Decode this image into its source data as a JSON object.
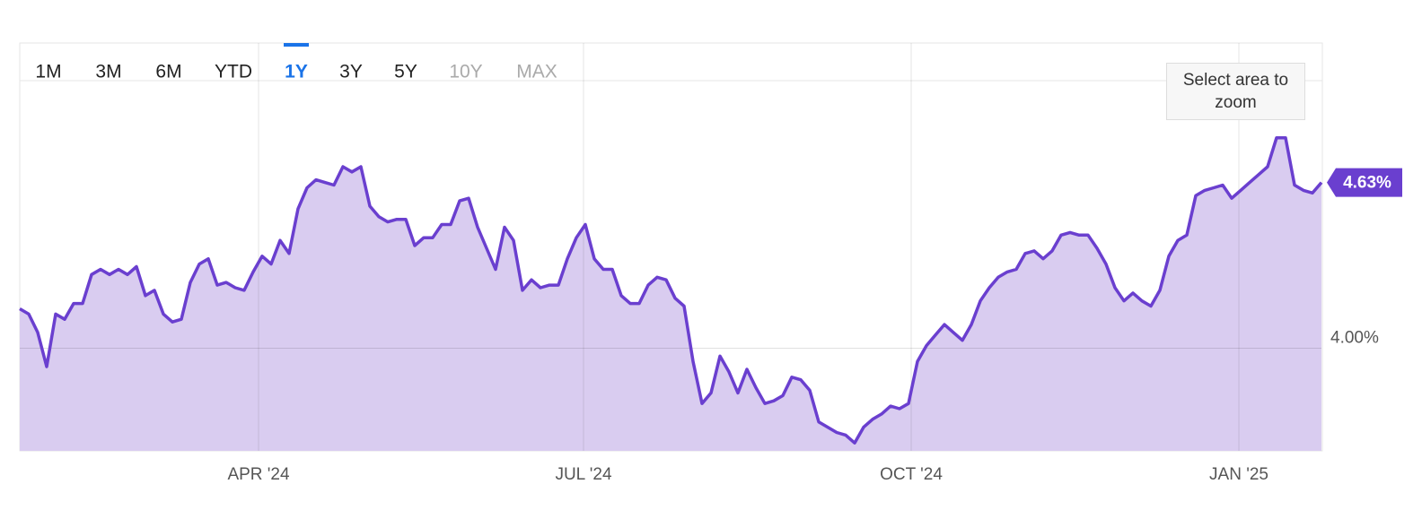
{
  "chart_data": {
    "type": "area",
    "range_buttons": [
      {
        "label": "1M",
        "state": "enabled"
      },
      {
        "label": "3M",
        "state": "enabled"
      },
      {
        "label": "6M",
        "state": "enabled"
      },
      {
        "label": "YTD",
        "state": "enabled"
      },
      {
        "label": "1Y",
        "state": "active"
      },
      {
        "label": "3Y",
        "state": "enabled"
      },
      {
        "label": "5Y",
        "state": "enabled"
      },
      {
        "label": "10Y",
        "state": "disabled"
      },
      {
        "label": "MAX",
        "state": "disabled"
      }
    ],
    "zoom_hint": "Select area to zoom",
    "xlim": [
      0,
      145
    ],
    "xticks": [
      {
        "value": 26.6,
        "label": "APR '24"
      },
      {
        "value": 62.8,
        "label": "JUL '24"
      },
      {
        "value": 99.3,
        "label": "OCT '24"
      },
      {
        "value": 135.8,
        "label": "JAN '25"
      }
    ],
    "ylim": [
      3.61,
      5.16
    ],
    "yticks": [
      {
        "value": 4,
        "label": "4.00%"
      }
    ],
    "grid": true,
    "series": [
      {
        "color": "#6a3fcf",
        "fill": "#d9ccf0",
        "values": [
          4.15,
          4.13,
          4.06,
          3.93,
          4.13,
          4.11,
          4.17,
          4.17,
          4.28,
          4.3,
          4.28,
          4.3,
          4.28,
          4.31,
          4.2,
          4.22,
          4.13,
          4.1,
          4.11,
          4.25,
          4.32,
          4.34,
          4.24,
          4.25,
          4.23,
          4.22,
          4.29,
          4.35,
          4.32,
          4.41,
          4.36,
          4.53,
          4.61,
          4.64,
          4.63,
          4.62,
          4.69,
          4.67,
          4.69,
          4.54,
          4.5,
          4.48,
          4.49,
          4.49,
          4.39,
          4.42,
          4.42,
          4.47,
          4.47,
          4.56,
          4.57,
          4.46,
          4.38,
          4.3,
          4.46,
          4.41,
          4.22,
          4.26,
          4.23,
          4.24,
          4.24,
          4.34,
          4.42,
          4.47,
          4.34,
          4.3,
          4.3,
          4.2,
          4.17,
          4.17,
          4.24,
          4.27,
          4.26,
          4.19,
          4.16,
          3.95,
          3.79,
          3.83,
          3.97,
          3.91,
          3.83,
          3.92,
          3.85,
          3.79,
          3.8,
          3.82,
          3.89,
          3.88,
          3.84,
          3.72,
          3.7,
          3.68,
          3.67,
          3.64,
          3.7,
          3.73,
          3.75,
          3.78,
          3.77,
          3.79,
          3.95,
          4.01,
          4.05,
          4.09,
          4.06,
          4.03,
          4.09,
          4.18,
          4.23,
          4.27,
          4.29,
          4.3,
          4.36,
          4.37,
          4.34,
          4.37,
          4.43,
          4.44,
          4.43,
          4.43,
          4.38,
          4.32,
          4.23,
          4.18,
          4.21,
          4.18,
          4.16,
          4.22,
          4.35,
          4.41,
          4.43,
          4.58,
          4.6,
          4.61,
          4.62,
          4.57,
          4.6,
          4.63,
          4.66,
          4.69,
          4.8,
          4.8,
          4.62,
          4.6,
          4.59,
          4.63
        ],
        "value_labels": [
          null,
          null,
          null,
          null,
          null,
          null,
          null,
          null,
          null,
          null,
          null,
          null,
          null,
          null,
          null,
          null,
          null,
          null,
          null,
          null,
          null,
          null,
          null,
          null,
          null,
          null,
          null,
          null,
          null,
          null,
          null,
          null,
          null,
          null,
          null,
          null,
          null,
          null,
          null,
          null,
          null,
          null,
          null,
          null,
          null,
          null,
          null,
          null,
          null,
          null,
          null,
          null,
          null,
          null,
          null,
          null,
          null,
          null,
          null,
          null,
          null,
          null,
          null,
          null,
          null,
          null,
          null,
          null,
          null,
          null,
          null,
          null,
          null,
          null,
          null,
          null,
          null,
          null,
          null,
          null,
          null,
          null,
          null,
          null,
          null,
          null,
          null,
          null,
          null,
          null,
          null,
          null,
          null,
          null,
          null,
          null,
          null,
          null,
          null,
          null,
          null,
          null,
          null,
          null,
          null,
          null,
          null,
          null,
          null,
          null,
          null,
          null,
          null,
          null,
          null,
          null,
          null,
          null,
          null,
          null,
          null,
          null,
          null,
          null,
          null,
          null,
          null,
          null,
          null,
          null,
          null,
          null,
          null,
          null,
          null,
          null,
          null,
          null,
          null,
          null,
          null,
          null,
          null,
          null,
          null,
          "4.63%"
        ]
      }
    ]
  }
}
